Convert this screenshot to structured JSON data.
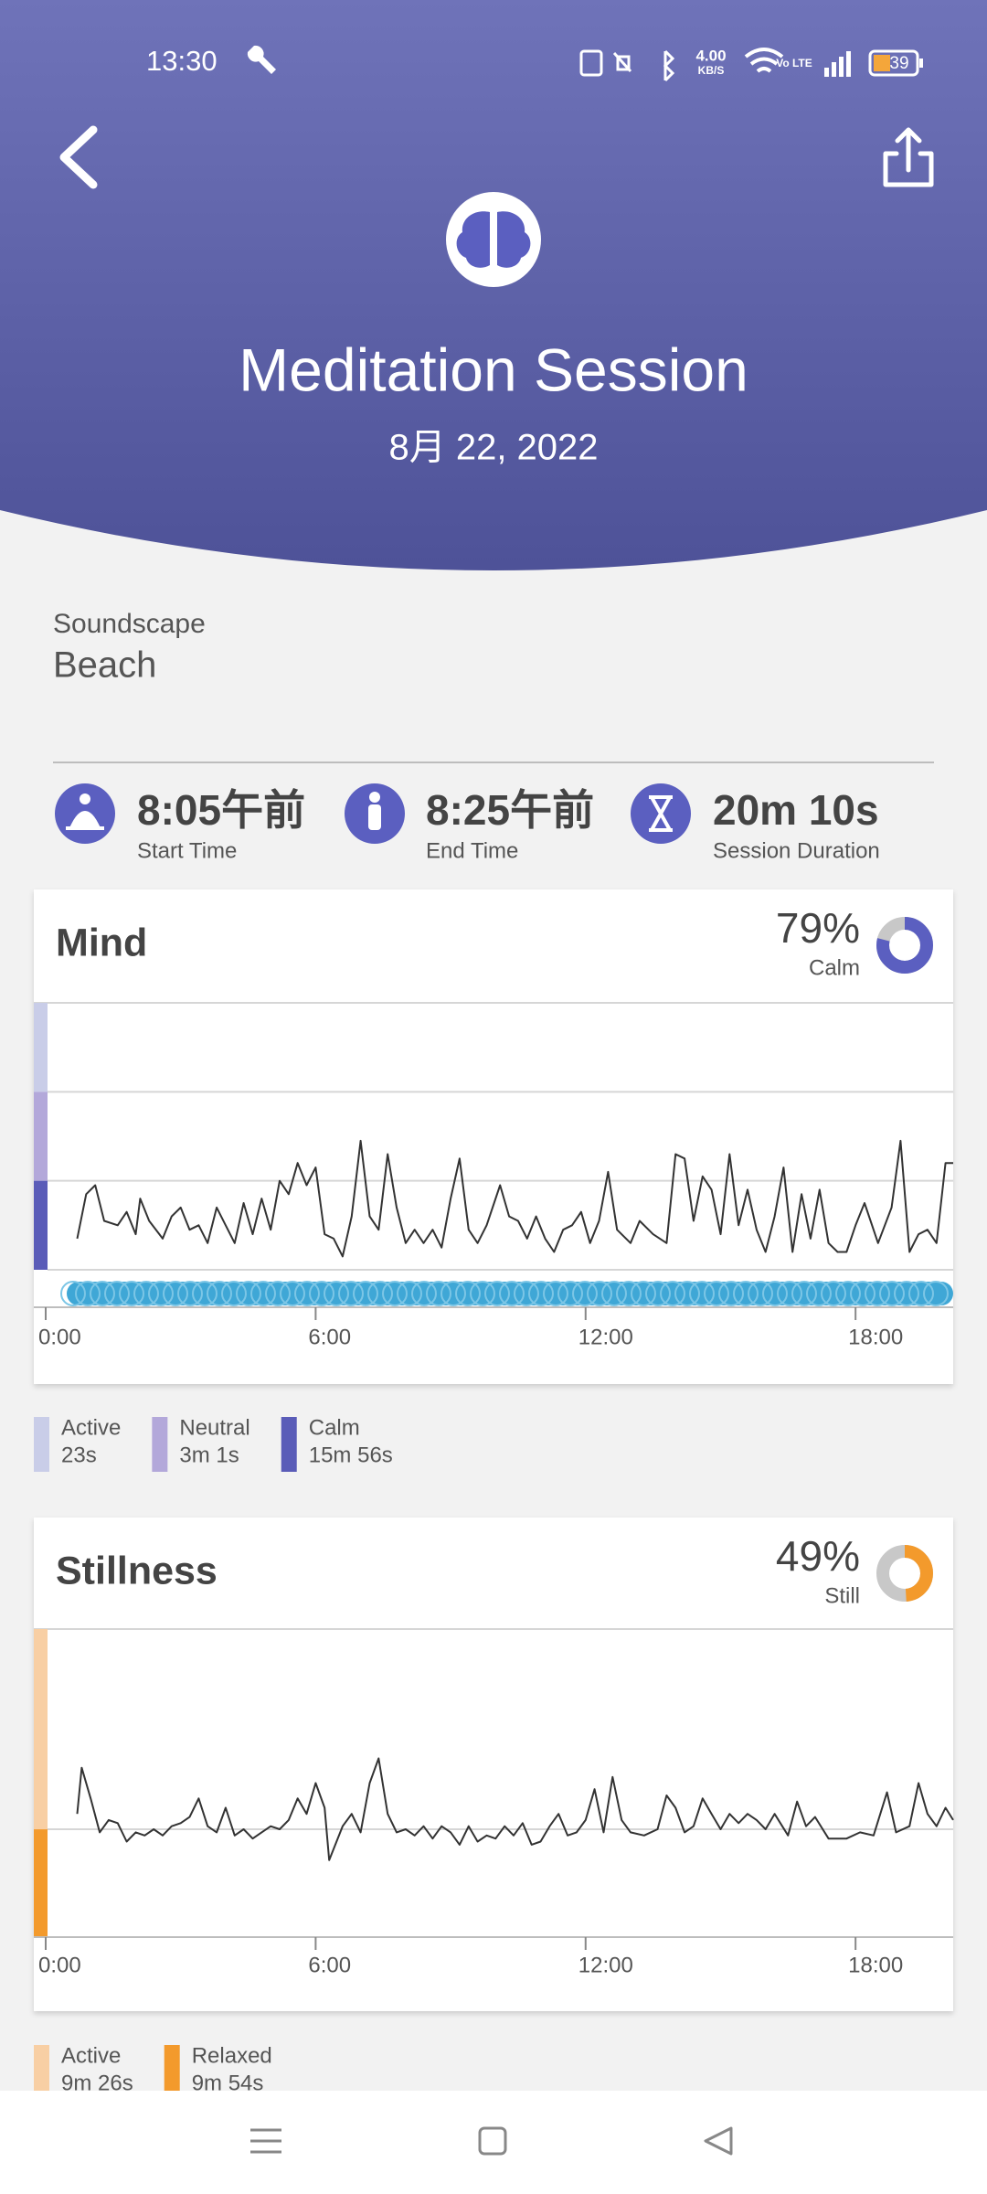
{
  "status_bar": {
    "time": "13:30",
    "net_speed": "4.00",
    "net_unit": "KB/S",
    "battery": "39"
  },
  "header": {
    "title": "Meditation Session",
    "date": "8月 22, 2022"
  },
  "soundscape": {
    "label": "Soundscape",
    "value": "Beach"
  },
  "stats": [
    {
      "value": "8:05午前",
      "label": "Start Time"
    },
    {
      "value": "8:25午前",
      "label": "End Time"
    },
    {
      "value": "20m 10s",
      "label": "Session Duration"
    }
  ],
  "mind": {
    "title": "Mind",
    "percent": 79,
    "percent_label": "79%",
    "percent_caption": "Calm",
    "color": "#5b5fc0",
    "xlim": [
      0,
      20.17
    ],
    "xticks": [
      {
        "value": 0,
        "label": "0:00"
      },
      {
        "value": 6,
        "label": "6:00"
      },
      {
        "value": 12,
        "label": "12:00"
      },
      {
        "value": 18,
        "label": "18:00"
      }
    ],
    "ylim": [
      0,
      3
    ],
    "yticks": [
      0,
      1,
      2,
      3
    ],
    "bands": [
      {
        "name": "Active",
        "duration": "23s",
        "color": "#c9cde8"
      },
      {
        "name": "Neutral",
        "duration": "3m 1s",
        "color": "#b3a8da"
      },
      {
        "name": "Calm",
        "duration": "15m 56s",
        "color": "#5a5cb8"
      }
    ],
    "trace": {
      "x": [
        0.7,
        0.9,
        1.1,
        1.3,
        1.6,
        1.8,
        2.0,
        2.1,
        2.3,
        2.6,
        2.8,
        3.0,
        3.2,
        3.4,
        3.6,
        3.8,
        4.0,
        4.2,
        4.4,
        4.6,
        4.8,
        5.0,
        5.2,
        5.4,
        5.6,
        5.8,
        6.0,
        6.2,
        6.4,
        6.6,
        6.8,
        7.0,
        7.2,
        7.4,
        7.6,
        7.8,
        8.0,
        8.2,
        8.4,
        8.6,
        8.8,
        9.0,
        9.2,
        9.4,
        9.6,
        9.8,
        10.1,
        10.3,
        10.5,
        10.7,
        10.9,
        11.1,
        11.3,
        11.5,
        11.7,
        11.9,
        12.1,
        12.3,
        12.5,
        12.7,
        13.0,
        13.2,
        13.5,
        13.8,
        14.0,
        14.2,
        14.4,
        14.6,
        14.8,
        15.0,
        15.2,
        15.4,
        15.6,
        15.8,
        16.0,
        16.2,
        16.4,
        16.6,
        16.8,
        17.0,
        17.2,
        17.4,
        17.6,
        17.8,
        18.0,
        18.2,
        18.5,
        18.8,
        19.0,
        19.2,
        19.4,
        19.6,
        19.8,
        20.0,
        20.17
      ],
      "values": [
        0.35,
        0.85,
        0.95,
        0.55,
        0.5,
        0.65,
        0.4,
        0.8,
        0.55,
        0.35,
        0.6,
        0.7,
        0.45,
        0.5,
        0.3,
        0.7,
        0.5,
        0.3,
        0.75,
        0.4,
        0.8,
        0.45,
        1.0,
        0.85,
        1.2,
        0.95,
        1.15,
        0.4,
        0.35,
        0.15,
        0.6,
        1.45,
        0.6,
        0.45,
        1.3,
        0.7,
        0.3,
        0.45,
        0.3,
        0.45,
        0.25,
        0.8,
        1.25,
        0.45,
        0.3,
        0.5,
        0.95,
        0.6,
        0.55,
        0.35,
        0.6,
        0.35,
        0.2,
        0.45,
        0.5,
        0.65,
        0.3,
        0.55,
        1.1,
        0.45,
        0.3,
        0.55,
        0.4,
        0.3,
        1.3,
        1.25,
        0.55,
        1.05,
        0.9,
        0.4,
        1.3,
        0.5,
        0.9,
        0.45,
        0.2,
        0.6,
        1.15,
        0.2,
        0.85,
        0.35,
        0.9,
        0.3,
        0.2,
        0.2,
        0.5,
        0.75,
        0.3,
        0.7,
        1.45,
        0.2,
        0.4,
        0.45,
        0.3,
        1.2,
        1.2
      ]
    }
  },
  "stillness": {
    "title": "Stillness",
    "percent": 49,
    "percent_label": "49%",
    "percent_caption": "Still",
    "color": "#f39a2c",
    "xlim": [
      0,
      20.17
    ],
    "xticks": [
      {
        "value": 0,
        "label": "0:00"
      },
      {
        "value": 6,
        "label": "6:00"
      },
      {
        "value": 12,
        "label": "12:00"
      },
      {
        "value": 18,
        "label": "18:00"
      }
    ],
    "ylim": [
      0,
      100
    ],
    "yticks": [
      0,
      35,
      100
    ],
    "bands": [
      {
        "name": "Active",
        "duration": "9m 26s",
        "color": "#f8cfa4"
      },
      {
        "name": "Relaxed",
        "duration": "9m 54s",
        "color": "#f39a2c"
      }
    ],
    "trace": {
      "x": [
        0.7,
        0.8,
        1.0,
        1.2,
        1.4,
        1.6,
        1.8,
        2.0,
        2.2,
        2.4,
        2.6,
        2.8,
        3.0,
        3.2,
        3.4,
        3.6,
        3.8,
        4.0,
        4.2,
        4.4,
        4.6,
        4.8,
        5.0,
        5.2,
        5.4,
        5.6,
        5.8,
        6.0,
        6.2,
        6.3,
        6.6,
        6.8,
        7.0,
        7.2,
        7.4,
        7.6,
        7.8,
        8.0,
        8.2,
        8.4,
        8.6,
        8.8,
        9.0,
        9.2,
        9.4,
        9.6,
        9.8,
        10.0,
        10.2,
        10.4,
        10.6,
        10.8,
        11.0,
        11.2,
        11.4,
        11.6,
        11.8,
        12.0,
        12.2,
        12.4,
        12.6,
        12.8,
        13.0,
        13.3,
        13.6,
        13.8,
        14.0,
        14.2,
        14.4,
        14.6,
        14.8,
        15.0,
        15.2,
        15.4,
        15.6,
        15.8,
        16.0,
        16.2,
        16.5,
        16.7,
        16.9,
        17.1,
        17.4,
        17.8,
        18.1,
        18.4,
        18.7,
        18.9,
        19.2,
        19.4,
        19.6,
        19.8,
        20.0,
        20.17
      ],
      "values": [
        40,
        55,
        45,
        34,
        38,
        37,
        31,
        34,
        33,
        35,
        33,
        36,
        37,
        39,
        45,
        36,
        34,
        42,
        33,
        35,
        32,
        34,
        36,
        35,
        38,
        45,
        40,
        50,
        42,
        25,
        36,
        40,
        34,
        50,
        58,
        40,
        34,
        35,
        33,
        36,
        32,
        36,
        34,
        30,
        36,
        31,
        33,
        32,
        36,
        33,
        37,
        30,
        31,
        36,
        40,
        33,
        34,
        38,
        48,
        34,
        52,
        38,
        34,
        33,
        35,
        46,
        42,
        34,
        36,
        45,
        40,
        35,
        40,
        37,
        40,
        38,
        35,
        40,
        33,
        44,
        36,
        39,
        32,
        32,
        34,
        33,
        47,
        34,
        36,
        50,
        40,
        36,
        42,
        38
      ]
    }
  }
}
